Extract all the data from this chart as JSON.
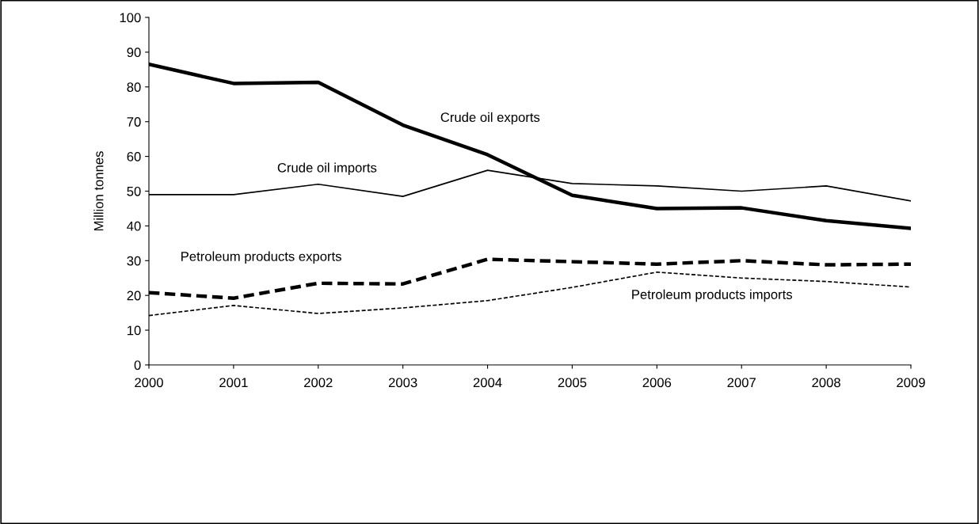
{
  "chart_data": {
    "type": "line",
    "ylabel": "Million tonnes",
    "x": [
      2000,
      2001,
      2002,
      2003,
      2004,
      2005,
      2006,
      2007,
      2008,
      2009
    ],
    "xlim": [
      2000,
      2009
    ],
    "xticks": [
      2000,
      2001,
      2002,
      2003,
      2004,
      2005,
      2006,
      2007,
      2008,
      2009
    ],
    "ylim": [
      0,
      100
    ],
    "yticks": [
      0,
      10,
      20,
      30,
      40,
      50,
      60,
      70,
      80,
      90,
      100
    ],
    "grid": false,
    "legend": false,
    "marker": "none",
    "series": [
      {
        "name": "Crude oil exports",
        "color": "#000000",
        "line_style": "solid",
        "values": [
          86.5,
          81,
          81.3,
          69,
          60.5,
          48.8,
          45,
          45.2,
          41.5,
          39.3
        ]
      },
      {
        "name": "Crude oil imports",
        "color": "#000000",
        "line_style": "solid",
        "values": [
          49,
          49,
          52,
          48.5,
          56,
          52.2,
          51.5,
          50,
          51.5,
          47.2
        ]
      },
      {
        "name": "Petroleum products exports",
        "color": "#000000",
        "line_style": "dashed",
        "values": [
          20.8,
          19.2,
          23.5,
          23.3,
          30.4,
          29.7,
          29,
          30,
          28.8,
          29
        ]
      },
      {
        "name": "Petroleum products imports",
        "color": "#000000",
        "line_style": "dashed",
        "values": [
          14.2,
          17.1,
          14.8,
          16.4,
          18.5,
          22.3,
          26.7,
          25,
          24,
          22.4
        ]
      }
    ]
  }
}
